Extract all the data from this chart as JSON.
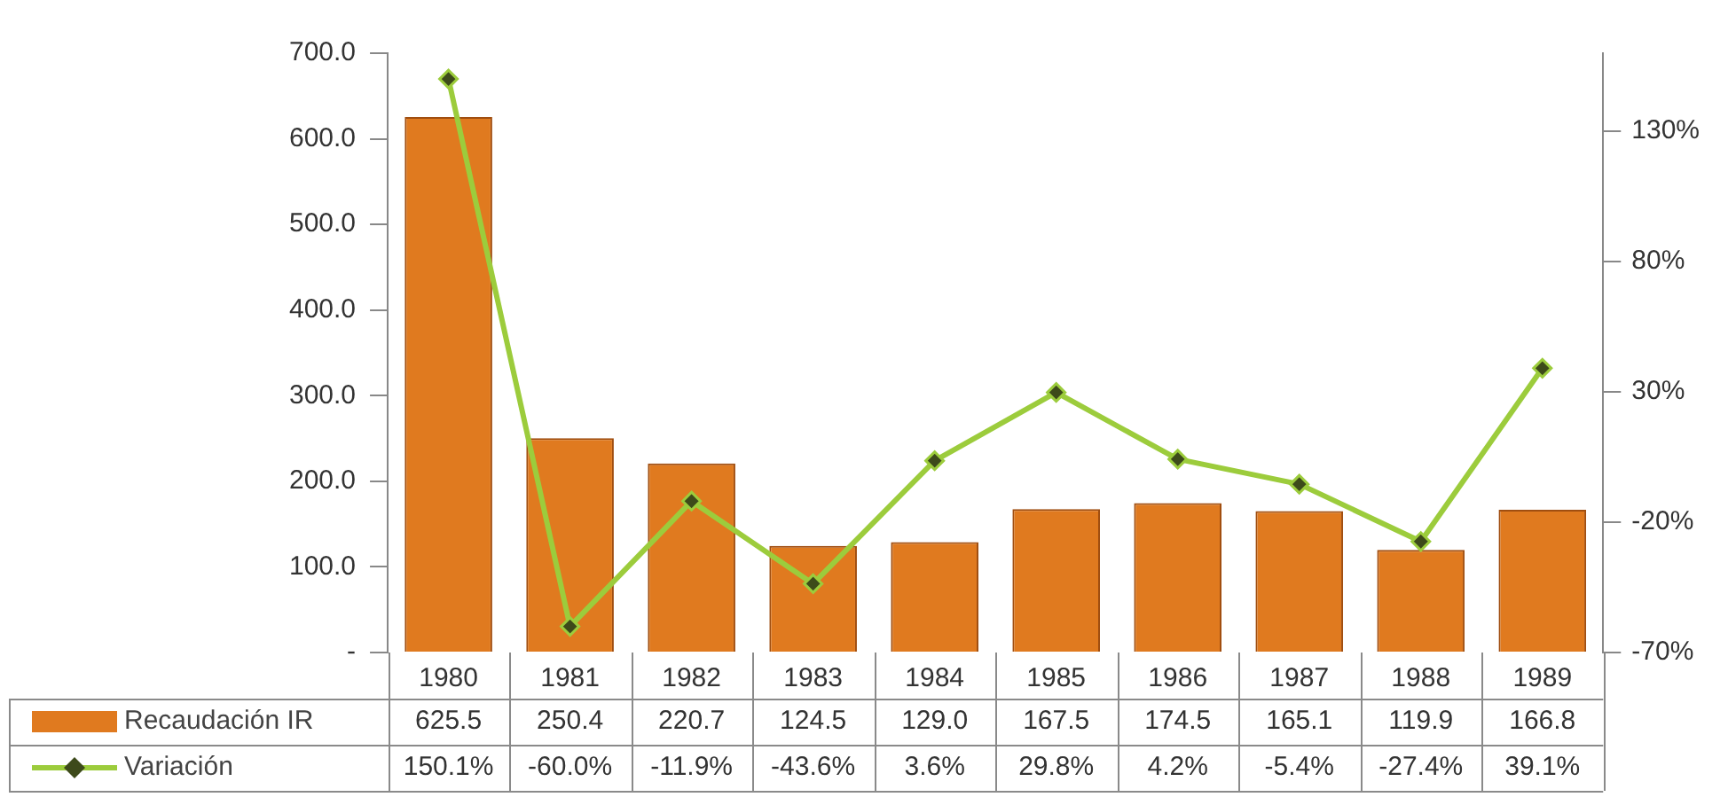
{
  "chart_data": {
    "type": "bar",
    "categories": [
      "1980",
      "1981",
      "1982",
      "1983",
      "1984",
      "1985",
      "1986",
      "1987",
      "1988",
      "1989"
    ],
    "series": [
      {
        "name": "Recaudación IR",
        "color": "#e07a1f",
        "values": [
          625.5,
          250.4,
          220.7,
          124.5,
          129.0,
          167.5,
          174.5,
          165.1,
          119.9,
          166.8
        ],
        "value_labels": [
          "625.5",
          "250.4",
          "220.7",
          "124.5",
          "129.0",
          "167.5",
          "174.5",
          "165.1",
          "119.9",
          "166.8"
        ]
      },
      {
        "name": "Variación",
        "type": "line",
        "axis": "y2",
        "color": "#9ccc3c",
        "marker": "diamond",
        "values": [
          150.1,
          -60.0,
          -11.9,
          -43.6,
          3.6,
          29.8,
          4.2,
          -5.4,
          -27.4,
          39.1
        ],
        "value_labels": [
          "150.1%",
          "-60.0%",
          "-11.9%",
          "-43.6%",
          "3.6%",
          "29.8%",
          "4.2%",
          "-5.4%",
          "-27.4%",
          "39.1%"
        ]
      }
    ],
    "ylim": [
      0,
      700
    ],
    "yticks": [
      {
        "value": 0,
        "label": "-"
      },
      {
        "value": 100,
        "label": "100.0"
      },
      {
        "value": 200,
        "label": "200.0"
      },
      {
        "value": 300,
        "label": "300.0"
      },
      {
        "value": 400,
        "label": "400.0"
      },
      {
        "value": 500,
        "label": "500.0"
      },
      {
        "value": 600,
        "label": "600.0"
      },
      {
        "value": 700,
        "label": "700.0"
      }
    ],
    "y2lim": [
      -70,
      160
    ],
    "y2ticks": [
      {
        "value": -70,
        "label": "-70%"
      },
      {
        "value": -20,
        "label": "-20%"
      },
      {
        "value": 30,
        "label": "30%"
      },
      {
        "value": 80,
        "label": "80%"
      },
      {
        "value": 130,
        "label": "130%"
      }
    ],
    "grid": false,
    "legend": "bottom"
  }
}
